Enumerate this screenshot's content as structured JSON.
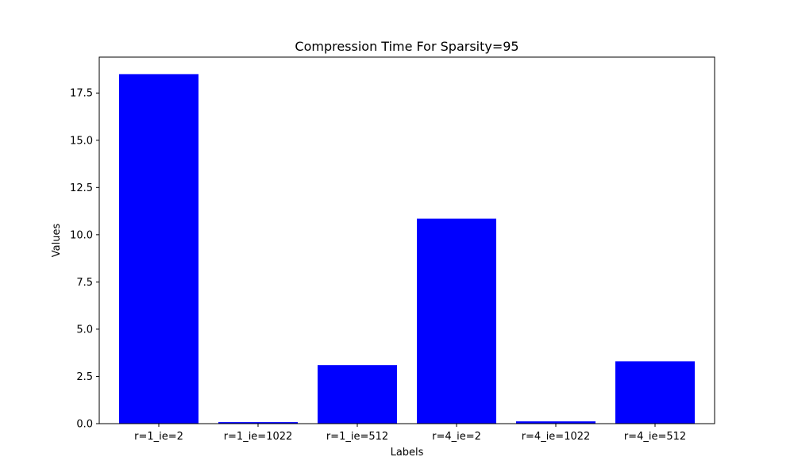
{
  "chart_data": {
    "type": "bar",
    "title": "Compression Time For Sparsity=95",
    "xlabel": "Labels",
    "ylabel": "Values",
    "categories": [
      "r=1_ie=2",
      "r=1_ie=1022",
      "r=1_ie=512",
      "r=4_ie=2",
      "r=4_ie=1022",
      "r=4_ie=512"
    ],
    "values": [
      18.5,
      0.08,
      3.1,
      10.85,
      0.12,
      3.3
    ],
    "ylim": [
      0,
      19.4
    ],
    "yticks": [
      0.0,
      2.5,
      5.0,
      7.5,
      10.0,
      12.5,
      15.0,
      17.5
    ],
    "ytick_labels": [
      "0.0",
      "2.5",
      "5.0",
      "7.5",
      "10.0",
      "12.5",
      "15.0",
      "17.5"
    ],
    "bar_color": "#0000ff",
    "grid": false,
    "legend": "none"
  }
}
